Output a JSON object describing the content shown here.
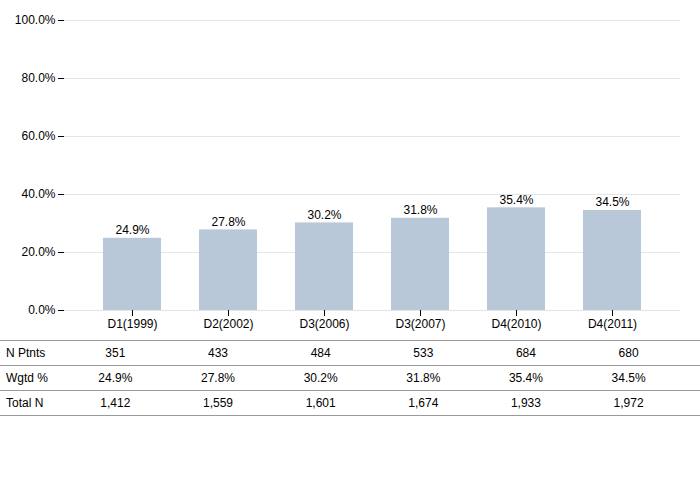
{
  "chart_data": {
    "type": "bar",
    "categories": [
      "D1(1999)",
      "D2(2002)",
      "D3(2006)",
      "D3(2007)",
      "D4(2010)",
      "D4(2011)"
    ],
    "values": [
      24.9,
      27.8,
      30.2,
      31.8,
      35.4,
      34.5
    ],
    "value_labels": [
      "24.9%",
      "27.8%",
      "30.2%",
      "31.8%",
      "35.4%",
      "34.5%"
    ],
    "data_labels": true,
    "color": "#b8c8d8",
    "ylim": [
      0,
      100
    ],
    "yticks": [
      {
        "value": 0,
        "label": "0.0%"
      },
      {
        "value": 20,
        "label": "20.0%"
      },
      {
        "value": 40,
        "label": "40.0%"
      },
      {
        "value": 60,
        "label": "60.0%"
      },
      {
        "value": 80,
        "label": "80.0%"
      },
      {
        "value": 100,
        "label": "100.0%"
      }
    ],
    "grid": true,
    "table": {
      "rows": [
        {
          "label": "N Ptnts",
          "cells": [
            351,
            433,
            484,
            533,
            684,
            680
          ]
        },
        {
          "label": "Wgtd %",
          "cells": [
            "24.9%",
            "27.8%",
            "30.2%",
            "31.8%",
            "35.4%",
            "34.5%"
          ]
        },
        {
          "label": "Total N",
          "cells": [
            "1,412",
            "1,559",
            "1,601",
            "1,674",
            "1,933",
            "1,972"
          ]
        }
      ]
    }
  }
}
